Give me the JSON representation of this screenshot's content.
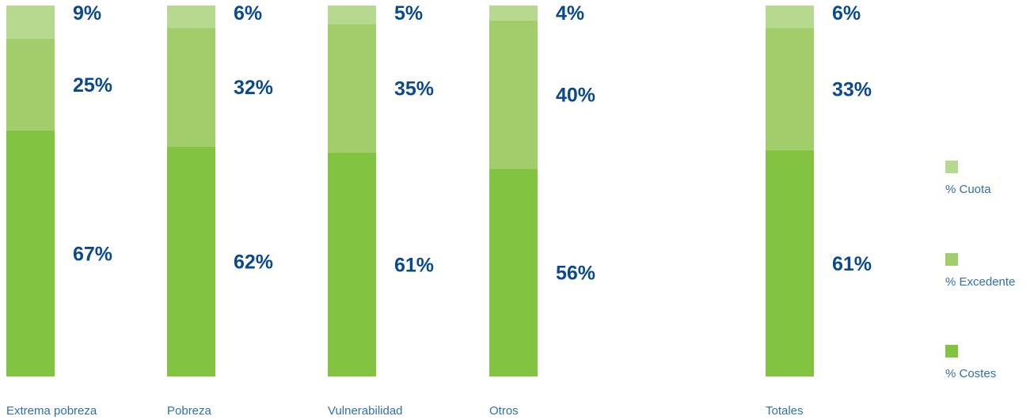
{
  "chart_data": {
    "type": "bar",
    "stacked": true,
    "percent_stacked": true,
    "categories": [
      "Extrema pobreza",
      "Pobreza",
      "Vulnerabilidad",
      "Otros",
      "Totales"
    ],
    "series": [
      {
        "name": "% Costes",
        "values": [
          67,
          62,
          61,
          56,
          61
        ],
        "color": "#82c341"
      },
      {
        "name": "% Excedente",
        "values": [
          25,
          32,
          35,
          40,
          33
        ],
        "color": "#a1ce6a"
      },
      {
        "name": "% Cuota",
        "values": [
          9,
          6,
          5,
          4,
          6
        ],
        "color": "#b6d98f"
      }
    ],
    "value_suffix": "%",
    "ylim": [
      0,
      100
    ],
    "grid": false,
    "legend": "right",
    "title": "",
    "xlabel": "",
    "ylabel": ""
  },
  "colors": {
    "label_text": "#0a4a8c",
    "category_text": "#2f6fb0"
  }
}
